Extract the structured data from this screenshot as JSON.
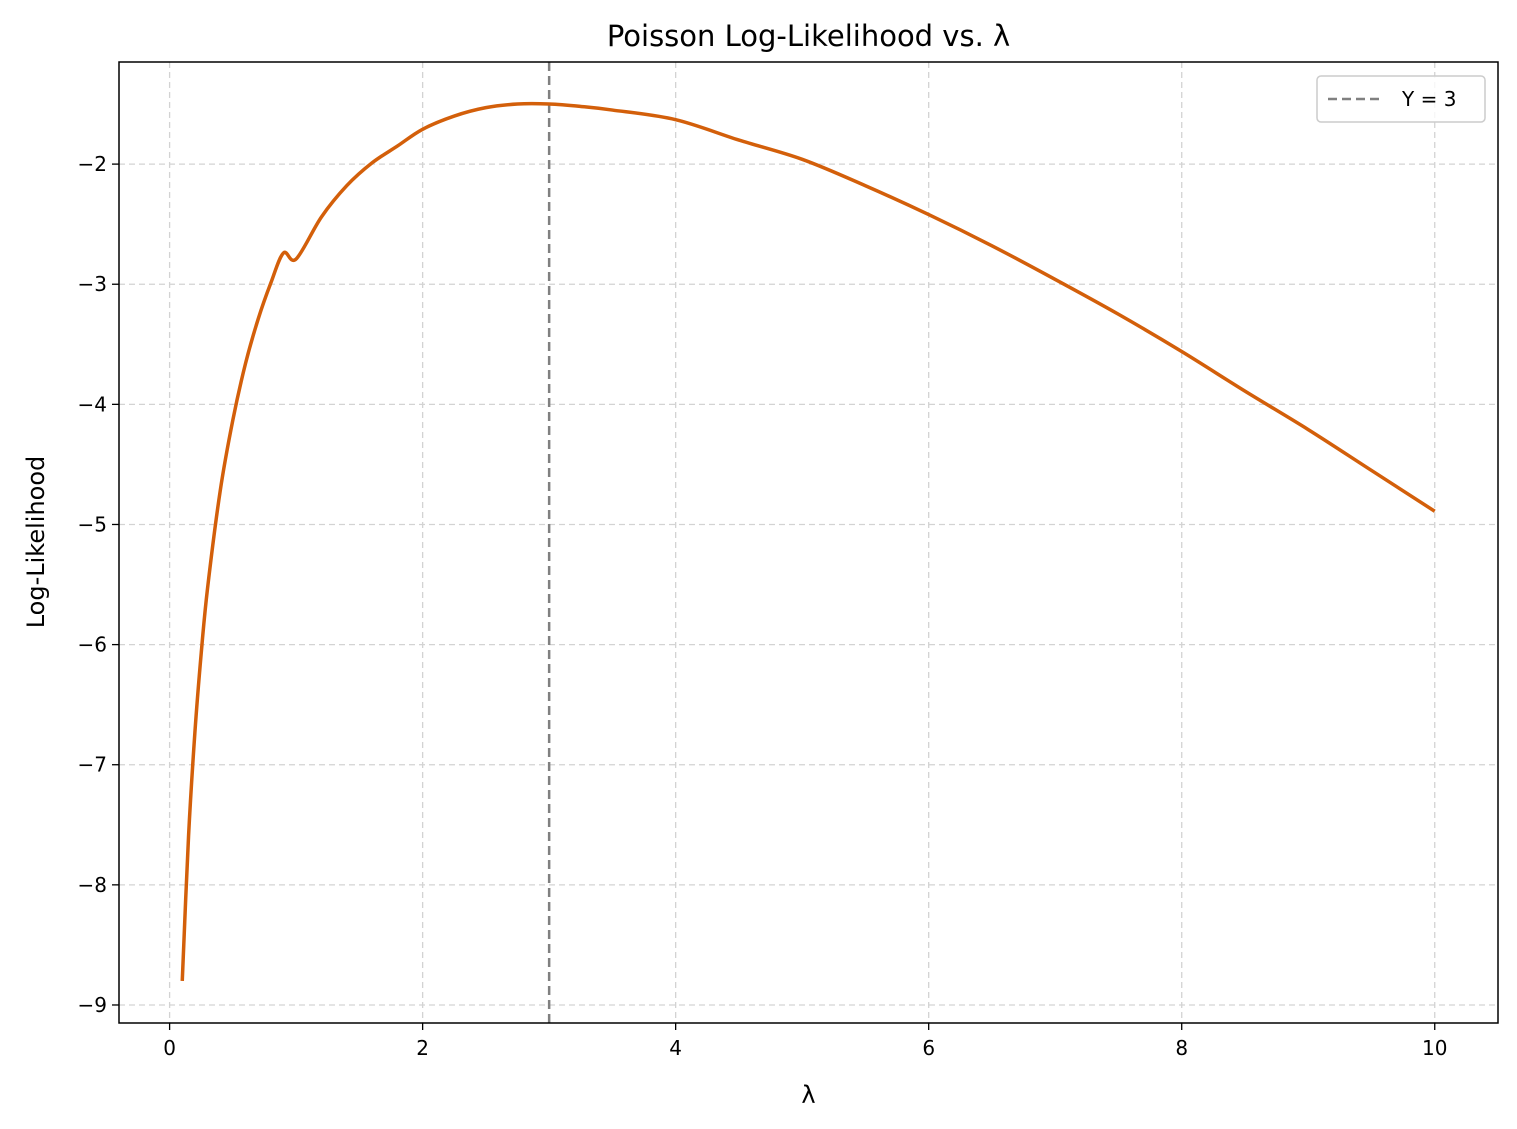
{
  "chart_data": {
    "type": "line",
    "title": "Poisson Log-Likelihood vs. λ",
    "xlabel": "λ",
    "ylabel": "Log-Likelihood",
    "xlim": [
      -0.4,
      10.5
    ],
    "ylim": [
      -9.15,
      -1.15
    ],
    "xticks": [
      0,
      2,
      4,
      6,
      8,
      10
    ],
    "xtick_labels": [
      "0",
      "2",
      "4",
      "6",
      "8",
      "10"
    ],
    "yticks": [
      -9,
      -8,
      -7,
      -6,
      -5,
      -4,
      -3,
      -2
    ],
    "ytick_labels": [
      "−9",
      "−8",
      "−7",
      "−6",
      "−5",
      "−4",
      "−3",
      "−2"
    ],
    "grid": true,
    "legend_position": "upper-right",
    "series": [
      {
        "color": "#d35f0a",
        "x": [
          0.1,
          0.15,
          0.2,
          0.25,
          0.3,
          0.4,
          0.5,
          0.6,
          0.7,
          0.8,
          0.9,
          1.0,
          1.2,
          1.4,
          1.6,
          1.8,
          2.0,
          2.25,
          2.5,
          2.75,
          3.0,
          3.25,
          3.5,
          4.0,
          4.5,
          5.0,
          5.5,
          6.0,
          6.5,
          7.0,
          7.5,
          8.0,
          8.5,
          9.0,
          9.5,
          10.0
        ],
        "y": [
          -8.8,
          -7.59,
          -6.73,
          -6.07,
          -5.53,
          -4.72,
          -4.13,
          -3.66,
          -3.29,
          -2.99,
          -2.74,
          -2.79,
          -2.44,
          -2.18,
          -1.99,
          -1.85,
          -1.71,
          -1.6,
          -1.53,
          -1.5,
          -1.5,
          -1.52,
          -1.55,
          -1.63,
          -1.8,
          -1.96,
          -2.18,
          -2.42,
          -2.68,
          -2.96,
          -3.25,
          -3.56,
          -3.89,
          -4.21,
          -4.55,
          -4.89
        ]
      }
    ],
    "reference_lines": [
      {
        "orientation": "vertical",
        "x": 3,
        "label": "Y = 3",
        "color": "#808080",
        "style": "dashed"
      }
    ]
  }
}
